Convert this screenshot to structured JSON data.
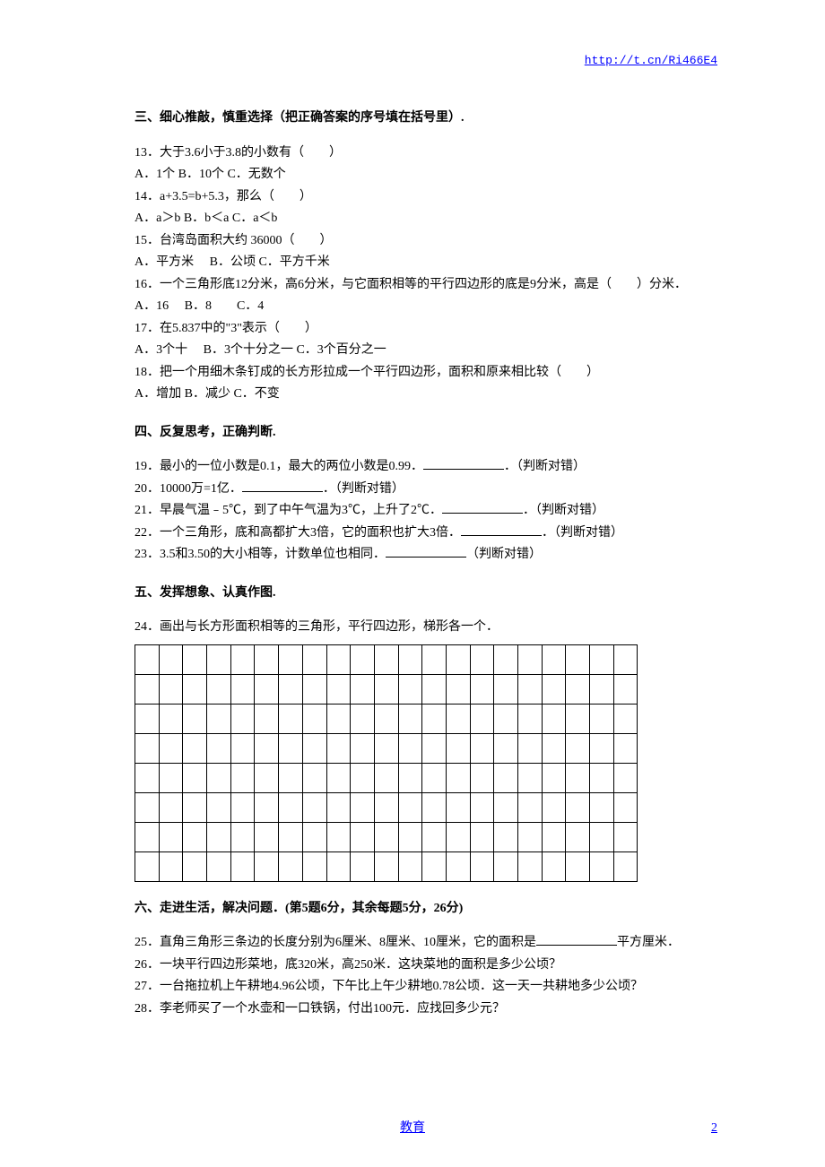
{
  "header": {
    "link": "http://t.cn/Ri466E4"
  },
  "section3": {
    "title": "三、细心推敲，慎重选择（把正确答案的序号填在括号里）.",
    "q13": "13．大于3.6小于3.8的小数有（　　）",
    "q13opts": "A．1个  B．10个 C．无数个",
    "q14": "14．a+3.5=b+5.3，那么（　　）",
    "q14opts": "A．a＞b B．b＜a C．a＜b",
    "q15": "15．台湾岛面积大约 36000（　　）",
    "q15opts": "A．平方米　 B．公顷 C．平方千米",
    "q16": "16．一个三角形底12分米，高6分米，与它面积相等的平行四边形的底是9分米，高是（　　）分米．",
    "q16opts": "A．16　 B．8　　C．4",
    "q17": "17．在5.837中的\"3\"表示（　　）",
    "q17opts": "A．3个十　 B．3个十分之一  C．3个百分之一",
    "q18": "18．把一个用细木条钉成的长方形拉成一个平行四边形，面积和原来相比较（　　）",
    "q18opts": "A．增加 B．减少 C．不变"
  },
  "section4": {
    "title": "四、反复思考，正确判断.",
    "q19a": "19．最小的一位小数是0.1，最大的两位小数是0.99．",
    "q19b": "．（判断对错）",
    "q20a": "20．10000万=1亿．",
    "q20b": "．（判断对错）",
    "q21a": "21．早晨气温﹣5℃，到了中午气温为3℃，上升了2℃．",
    "q21b": "．（判断对错）",
    "q22a": "22．一个三角形，底和高都扩大3倍，它的面积也扩大3倍．",
    "q22b": "．（判断对错）",
    "q23a": "23．3.5和3.50的大小相等，计数单位也相同．",
    "q23b": "（判断对错）"
  },
  "section5": {
    "title": "五、发挥想象、认真作图.",
    "q24": "24．画出与长方形面积相等的三角形，平行四边形，梯形各一个．",
    "grid": {
      "rows": 8,
      "cols": 21
    }
  },
  "section6": {
    "title": "六、走进生活，解决问题．(第5题6分，其余每题5分，26分)",
    "q25a": "25．直角三角形三条边的长度分别为6厘米、8厘米、10厘米，它的面积是",
    "q25b": "平方厘米．",
    "q26": "26．一块平行四边形菜地，底320米，高250米．这块菜地的面积是多少公顷？",
    "q27": "27．一台拖拉机上午耕地4.96公顷，下午比上午少耕地0.78公顷．这一天一共耕地多少公顷？",
    "q28": "28．李老师买了一个水壶和一口铁锅，付出100元．应找回多少元？"
  },
  "footer": {
    "text": "教育",
    "page": "2"
  }
}
